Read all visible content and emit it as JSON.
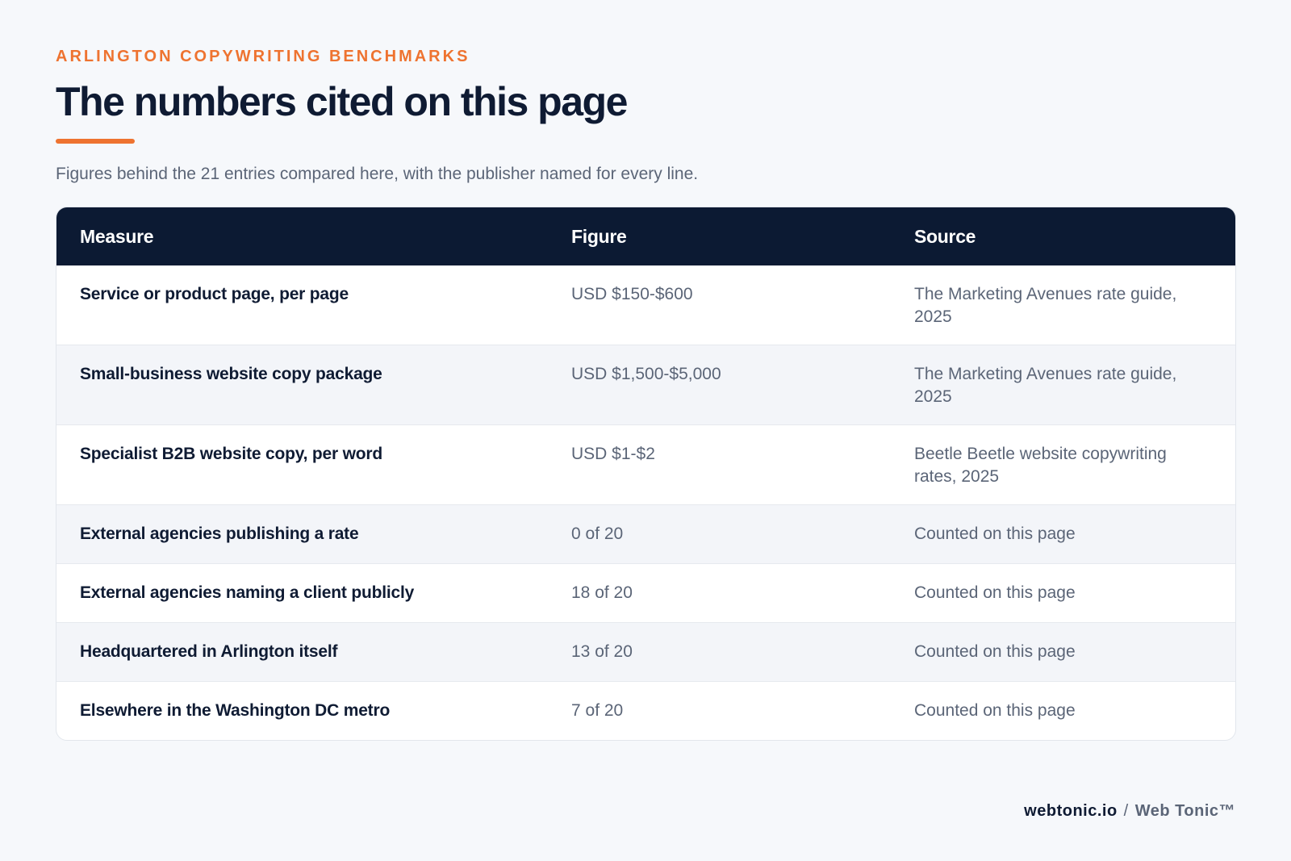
{
  "header": {
    "eyebrow": "ARLINGTON COPYWRITING BENCHMARKS",
    "title": "The numbers cited on this page",
    "subtitle": "Figures behind the 21 entries compared here, with the publisher named for every line."
  },
  "table": {
    "columns": [
      "Measure",
      "Figure",
      "Source"
    ],
    "rows": [
      {
        "measure": "Service or product page, per page",
        "figure": "USD $150-$600",
        "source": "The Marketing Avenues rate guide, 2025"
      },
      {
        "measure": "Small-business website copy package",
        "figure": "USD $1,500-$5,000",
        "source": "The Marketing Avenues rate guide, 2025"
      },
      {
        "measure": "Specialist B2B website copy, per word",
        "figure": "USD $1-$2",
        "source": "Beetle Beetle website copywriting rates, 2025"
      },
      {
        "measure": "External agencies publishing a rate",
        "figure": "0 of 20",
        "source": "Counted on this page"
      },
      {
        "measure": "External agencies naming a client publicly",
        "figure": "18 of 20",
        "source": "Counted on this page"
      },
      {
        "measure": "Headquartered in Arlington itself",
        "figure": "13 of 20",
        "source": "Counted on this page"
      },
      {
        "measure": "Elsewhere in the Washington DC metro",
        "figure": "7 of 20",
        "source": "Counted on this page"
      }
    ]
  },
  "footer": {
    "domain": "webtonic.io",
    "separator": "/",
    "brand": "Web Tonic™"
  }
}
